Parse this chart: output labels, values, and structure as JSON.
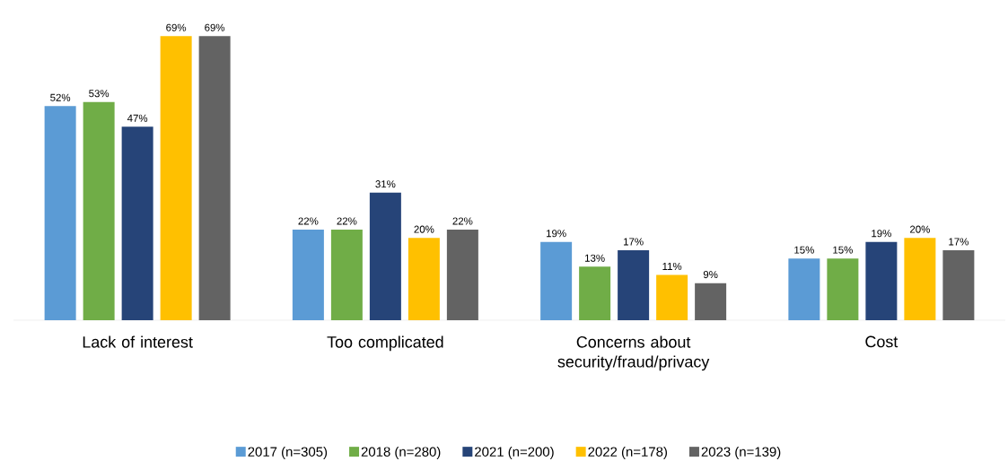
{
  "chart_data": {
    "type": "bar",
    "categories": [
      "Lack of interest",
      "Too complicated",
      "Concerns about security/fraud/privacy",
      "Cost"
    ],
    "series": [
      {
        "name": "2017 (n=305)",
        "color": "#5b9bd5",
        "values": [
          52,
          22,
          19,
          15
        ],
        "value_labels": [
          "52%",
          "22%",
          "19%",
          "15%"
        ]
      },
      {
        "name": "2018 (n=280)",
        "color": "#70ad47",
        "values": [
          53,
          22,
          13,
          15
        ],
        "value_labels": [
          "53%",
          "22%",
          "13%",
          "15%"
        ]
      },
      {
        "name": "2021 (n=200)",
        "color": "#264478",
        "values": [
          47,
          31,
          17,
          19
        ],
        "value_labels": [
          "47%",
          "31%",
          "17%",
          "19%"
        ]
      },
      {
        "name": "2022 (n=178)",
        "color": "#ffc000",
        "values": [
          69,
          20,
          11,
          20
        ],
        "value_labels": [
          "69%",
          "20%",
          "11%",
          "20%"
        ]
      },
      {
        "name": "2023 (n=139)",
        "color": "#636363",
        "values": [
          69,
          22,
          9,
          17
        ],
        "value_labels": [
          "69%",
          "22%",
          "9%",
          "17%"
        ]
      }
    ],
    "legend": "bottom"
  }
}
